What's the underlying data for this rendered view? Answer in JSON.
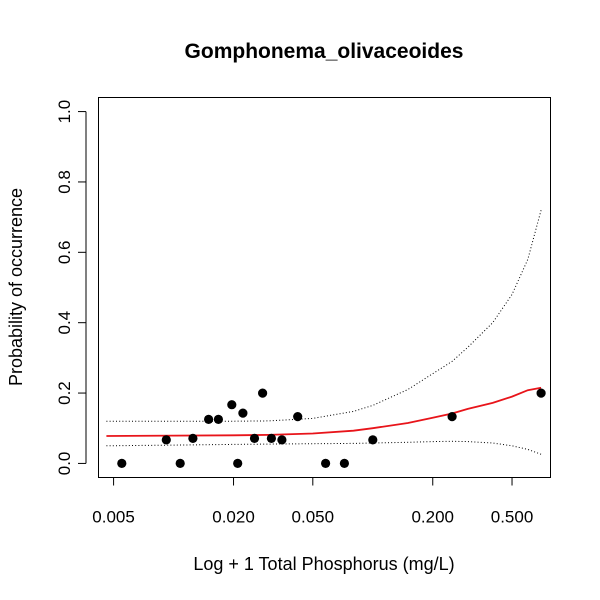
{
  "chart_data": {
    "type": "scatter",
    "title": "Gomphonema_olivaceoides",
    "xlabel": "Log + 1 Total Phosphorus (mg/L)",
    "ylabel": "Probability of occurrence",
    "x_scale": "log",
    "xlim": [
      0.0042,
      0.78
    ],
    "ylim": [
      -0.04,
      1.04
    ],
    "x_ticks": [
      0.005,
      0.02,
      0.05,
      0.2,
      0.5
    ],
    "x_tick_labels": [
      "0.005",
      "0.020",
      "0.050",
      "0.200",
      "0.500"
    ],
    "y_ticks": [
      0,
      0.2,
      0.4,
      0.6,
      0.8,
      1.0
    ],
    "y_tick_labels": [
      "0.0",
      "0.2",
      "0.4",
      "0.6",
      "0.8",
      "1.0"
    ],
    "points": [
      {
        "x": 0.0055,
        "y": 0.0
      },
      {
        "x": 0.0092,
        "y": 0.067
      },
      {
        "x": 0.0108,
        "y": 0.0
      },
      {
        "x": 0.0125,
        "y": 0.071
      },
      {
        "x": 0.015,
        "y": 0.125
      },
      {
        "x": 0.0168,
        "y": 0.125
      },
      {
        "x": 0.0196,
        "y": 0.167
      },
      {
        "x": 0.021,
        "y": 0.0
      },
      {
        "x": 0.0223,
        "y": 0.143
      },
      {
        "x": 0.0255,
        "y": 0.071
      },
      {
        "x": 0.028,
        "y": 0.2
      },
      {
        "x": 0.031,
        "y": 0.071
      },
      {
        "x": 0.035,
        "y": 0.067
      },
      {
        "x": 0.042,
        "y": 0.133
      },
      {
        "x": 0.058,
        "y": 0.0
      },
      {
        "x": 0.072,
        "y": 0.0
      },
      {
        "x": 0.1,
        "y": 0.067
      },
      {
        "x": 0.25,
        "y": 0.133
      },
      {
        "x": 0.7,
        "y": 0.2
      }
    ],
    "fit": {
      "x": [
        0.0046,
        0.01,
        0.02,
        0.03,
        0.05,
        0.08,
        0.1,
        0.15,
        0.2,
        0.25,
        0.3,
        0.4,
        0.5,
        0.6,
        0.7
      ],
      "y": [
        0.078,
        0.079,
        0.08,
        0.081,
        0.085,
        0.093,
        0.1,
        0.115,
        0.13,
        0.142,
        0.155,
        0.172,
        0.19,
        0.208,
        0.215
      ]
    },
    "upper": {
      "x": [
        0.0046,
        0.01,
        0.02,
        0.03,
        0.05,
        0.08,
        0.1,
        0.15,
        0.2,
        0.25,
        0.3,
        0.4,
        0.5,
        0.6,
        0.7
      ],
      "y": [
        0.12,
        0.12,
        0.12,
        0.121,
        0.128,
        0.148,
        0.165,
        0.21,
        0.255,
        0.29,
        0.33,
        0.4,
        0.48,
        0.58,
        0.72
      ]
    },
    "lower": {
      "x": [
        0.0046,
        0.01,
        0.02,
        0.03,
        0.05,
        0.08,
        0.1,
        0.15,
        0.2,
        0.25,
        0.3,
        0.4,
        0.5,
        0.6,
        0.7
      ],
      "y": [
        0.05,
        0.052,
        0.054,
        0.055,
        0.056,
        0.057,
        0.058,
        0.06,
        0.062,
        0.063,
        0.062,
        0.058,
        0.05,
        0.04,
        0.026
      ]
    },
    "colors": {
      "fit": "#e8141a",
      "points": "#000000",
      "ci": "#000000"
    },
    "grid": false,
    "legend": "none"
  }
}
